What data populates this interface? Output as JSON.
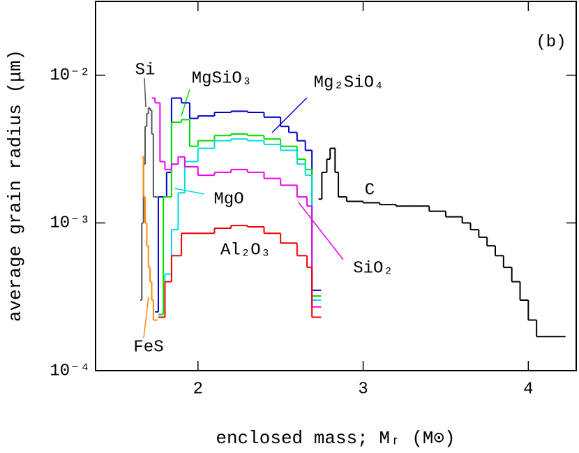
{
  "chart_data": {
    "type": "line",
    "drawstyle": "steps-post",
    "log_y": true,
    "annotation": "(b)",
    "xlabel": "enclosed mass; Mᵣ (M⊙)",
    "ylabel": "average grain radius (μm)",
    "xlim": [
      1.38,
      4.29
    ],
    "xticks": [
      2,
      3,
      4
    ],
    "ylim": [
      0.0001,
      0.0316
    ],
    "yticks": [
      {
        "value": 0.0001,
        "label": "10⁻⁴"
      },
      {
        "value": 0.001,
        "label": "10⁻³"
      },
      {
        "value": 0.01,
        "label": "10⁻²"
      }
    ],
    "series": [
      {
        "name": "Si",
        "color": "#555555",
        "x": [
          1.65,
          1.66,
          1.67,
          1.68,
          1.69,
          1.7,
          1.71,
          1.72,
          1.73
        ],
        "values": [
          0.0003,
          0.001,
          0.0025,
          0.0045,
          0.0055,
          0.006,
          0.0058,
          0.004,
          0.0015
        ]
      },
      {
        "name": "FeS",
        "color": "#ff8800",
        "x": [
          1.66,
          1.67,
          1.68,
          1.69,
          1.7,
          1.71,
          1.72,
          1.73
        ],
        "values": [
          0.0028,
          0.0015,
          0.001,
          0.0007,
          0.0005,
          0.0004,
          0.0003,
          0.00022
        ]
      },
      {
        "name": "Mg₂SiO₄",
        "color": "#0000cc",
        "x": [
          1.74,
          1.76,
          1.81,
          1.84,
          1.9,
          1.95,
          2.0,
          2.1,
          2.2,
          2.3,
          2.4,
          2.5,
          2.55,
          2.6,
          2.65,
          2.69,
          2.72
        ],
        "values": [
          0.00025,
          0.0015,
          0.0022,
          0.007,
          0.0065,
          0.0051,
          0.0053,
          0.0056,
          0.0057,
          0.0056,
          0.0052,
          0.0045,
          0.0041,
          0.0036,
          0.0031,
          0.00035,
          0.00035
        ]
      },
      {
        "name": "MgSiO₃",
        "color": "#00dd00",
        "x": [
          1.76,
          1.79,
          1.84,
          1.9,
          1.95,
          2.0,
          2.1,
          2.2,
          2.3,
          2.4,
          2.5,
          2.6,
          2.65,
          2.69,
          2.72
        ],
        "values": [
          0.00024,
          0.0015,
          0.0048,
          0.005,
          0.0033,
          0.0036,
          0.0039,
          0.004,
          0.0039,
          0.0037,
          0.0033,
          0.0027,
          0.0023,
          0.00032,
          0.00032
        ]
      },
      {
        "name": "MgO",
        "color": "#00dddd",
        "x": [
          1.76,
          1.8,
          1.84,
          1.88,
          1.92,
          2.0,
          2.1,
          2.2,
          2.3,
          2.4,
          2.5,
          2.6,
          2.65,
          2.69,
          2.72
        ],
        "values": [
          0.00023,
          0.00045,
          0.0009,
          0.0016,
          0.0026,
          0.0032,
          0.0036,
          0.0037,
          0.0036,
          0.0034,
          0.0031,
          0.0025,
          0.0021,
          0.0003,
          0.0003
        ]
      },
      {
        "name": "SiO₂",
        "color": "#ee00ee",
        "x": [
          1.72,
          1.74,
          1.77,
          1.8,
          1.84,
          1.88,
          1.92,
          2.0,
          2.1,
          2.2,
          2.3,
          2.4,
          2.5,
          2.6,
          2.66,
          2.69,
          2.72
        ],
        "values": [
          0.007,
          0.0065,
          0.0026,
          0.0023,
          0.0025,
          0.0028,
          0.0024,
          0.0021,
          0.0022,
          0.0023,
          0.0022,
          0.002,
          0.0018,
          0.0015,
          0.0013,
          0.00027,
          0.00027
        ]
      },
      {
        "name": "Al₂O₃",
        "color": "#ee0000",
        "x": [
          1.76,
          1.8,
          1.84,
          1.9,
          2.0,
          2.1,
          2.2,
          2.3,
          2.4,
          2.5,
          2.6,
          2.66,
          2.69,
          2.72
        ],
        "values": [
          0.00023,
          0.0004,
          0.0006,
          0.00085,
          0.00085,
          0.00092,
          0.00096,
          0.00094,
          0.00085,
          0.00073,
          0.0006,
          0.0005,
          0.00023,
          0.00023
        ]
      },
      {
        "name": "C",
        "color": "#000000",
        "x": [
          2.73,
          2.75,
          2.78,
          2.8,
          2.83,
          2.85,
          2.9,
          3.0,
          3.1,
          3.2,
          3.3,
          3.4,
          3.5,
          3.6,
          3.65,
          3.7,
          3.75,
          3.8,
          3.85,
          3.9,
          3.95,
          4.0,
          4.05,
          4.2
        ],
        "values": [
          0.00145,
          0.0022,
          0.0027,
          0.0032,
          0.0022,
          0.0015,
          0.0014,
          0.00137,
          0.00133,
          0.0013,
          0.0013,
          0.0012,
          0.0011,
          0.001,
          0.0009,
          0.0008,
          0.0007,
          0.0006,
          0.0005,
          0.0004,
          0.0003,
          0.00022,
          0.00017,
          0.00017
        ]
      }
    ]
  }
}
